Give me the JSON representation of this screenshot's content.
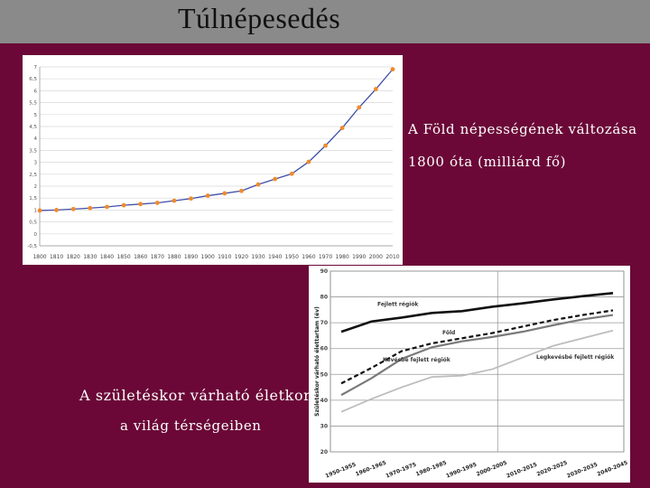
{
  "slide": {
    "title": "Túlnépesedés",
    "caption1_line1": "A Föld népességének változása",
    "caption1_line2": "1800 óta (milliárd fő)",
    "caption2_line1": "A születéskor várható életkor",
    "caption2_line2": "a világ térségeiben"
  },
  "colors": {
    "background": "#6b0837",
    "titlebar": "#8a8a8a",
    "line1": "#3f4fa8",
    "marker1": "#f08a2a"
  },
  "chart_data": [
    {
      "type": "line",
      "x": [
        1800,
        1810,
        1820,
        1830,
        1840,
        1850,
        1860,
        1870,
        1880,
        1890,
        1900,
        1910,
        1920,
        1930,
        1940,
        1950,
        1960,
        1970,
        1980,
        1990,
        2000,
        2010
      ],
      "x_tick_labels": [
        "1800",
        "1810",
        "1820",
        "1830",
        "1840",
        "1850",
        "1860",
        "1870",
        "1880",
        "1890",
        "1900",
        "1910",
        "1920",
        "1930",
        "1940",
        "1950",
        "1960",
        "1970",
        "1980",
        "1990",
        "2000",
        "2010"
      ],
      "series": [
        {
          "values": [
            0.98,
            1.0,
            1.04,
            1.08,
            1.13,
            1.2,
            1.25,
            1.3,
            1.39,
            1.48,
            1.6,
            1.7,
            1.8,
            2.07,
            2.3,
            2.52,
            3.02,
            3.7,
            4.44,
            5.3,
            6.07,
            6.9
          ]
        }
      ],
      "ylim": [
        -0.5,
        7
      ],
      "y_tick_labels": [
        "7",
        "6,5",
        "6",
        "5,5",
        "5",
        "4,5",
        "4",
        "3,5",
        "3",
        "2,5",
        "2",
        "1,5",
        "1",
        "0,5",
        "0",
        "-0,5"
      ],
      "grid": true
    },
    {
      "type": "line",
      "ylabel": "Születéskor várható élettartam (év)",
      "ylim": [
        20,
        90
      ],
      "y_ticks": [
        20,
        30,
        40,
        50,
        60,
        70,
        80,
        90
      ],
      "categories": [
        "1950-1955",
        "1960-1965",
        "1970-1975",
        "1980-1985",
        "1990-1995",
        "2000-2005",
        "2010-2015",
        "2020-2025",
        "2030-2035",
        "2040-2045"
      ],
      "series": [
        {
          "name": "Fejlett régiók",
          "style": "solid-thick",
          "values": [
            66.5,
            70.5,
            72.0,
            73.8,
            74.5,
            76.2,
            77.5,
            79.0,
            80.3,
            81.5
          ]
        },
        {
          "name": "Föld",
          "style": "dashed",
          "values": [
            46.5,
            52.5,
            59.0,
            62.0,
            64.0,
            66.0,
            68.5,
            71.0,
            73.0,
            74.8
          ]
        },
        {
          "name": "Kevésbé fejlett régiók",
          "style": "solid-gray",
          "values": [
            42.0,
            48.5,
            56.0,
            60.5,
            62.8,
            64.5,
            66.5,
            69.0,
            71.3,
            73.0
          ]
        },
        {
          "name": "Legkevésbé fejlett régiók",
          "style": "solid-light",
          "values": [
            35.5,
            40.5,
            45.0,
            49.0,
            49.5,
            52.0,
            56.5,
            61.0,
            64.0,
            67.0
          ]
        }
      ],
      "annotations": [
        "Fejlett régiók",
        "Föld",
        "Kevésbé fejlett régiók",
        "Legkevésbé fejlett régiók"
      ],
      "grid": true
    }
  ]
}
